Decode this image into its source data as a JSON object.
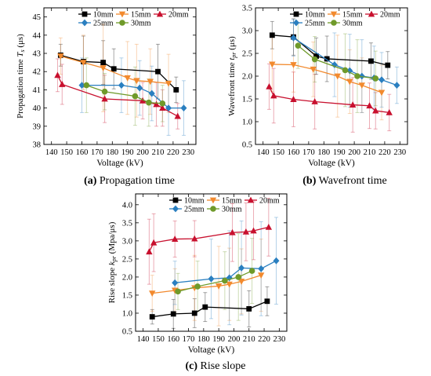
{
  "colors": {
    "10mm": "#000000",
    "15mm": "#f28a2e",
    "20mm": "#c8102e",
    "25mm": "#2a7fc0",
    "30mm": "#6f9a2a"
  },
  "captions": {
    "a": {
      "letter": "(a)",
      "text": " Propagation time"
    },
    "b": {
      "letter": "(b)",
      "text": " Wavefront time"
    },
    "c": {
      "letter": "(c)",
      "text": " Rise slope"
    }
  },
  "chart_data": [
    {
      "id": "a",
      "type": "line",
      "ylabel": "Propagation time T_s (μs)",
      "xlabel": "Voltage (kV)",
      "xlim": [
        135,
        235
      ],
      "ylim": [
        38,
        45.5
      ],
      "xticks": [
        140,
        150,
        160,
        170,
        180,
        190,
        200,
        210,
        220,
        230
      ],
      "yticks": [
        38,
        39,
        40,
        41,
        42,
        43,
        44,
        45
      ],
      "legend": {
        "placement": "top-right",
        "columns": 3
      },
      "series": [
        {
          "name": "10mm",
          "marker": "square",
          "x": [
            146,
            161,
            174,
            181,
            210,
            222
          ],
          "y": [
            42.9,
            42.55,
            42.5,
            42.15,
            42.0,
            41.0
          ],
          "err": [
            0.6,
            1.4,
            1.2,
            1.1,
            1.5,
            0.7
          ]
        },
        {
          "name": "15mm",
          "marker": "tri-down",
          "x": [
            146,
            161,
            174,
            190,
            196,
            205,
            217
          ],
          "y": [
            42.85,
            42.5,
            42.2,
            41.65,
            41.5,
            41.45,
            41.35
          ],
          "err": [
            1.0,
            1.5,
            2.4,
            2.0,
            2.0,
            1.8,
            1.6
          ]
        },
        {
          "name": "20mm",
          "marker": "tri-up",
          "x": [
            144,
            147,
            175,
            200,
            209,
            213,
            223
          ],
          "y": [
            41.8,
            41.3,
            40.5,
            40.4,
            40.2,
            40.0,
            39.55
          ],
          "err": [
            0.9,
            1.1,
            1.3,
            1.0,
            1.2,
            1.0,
            0.7
          ]
        },
        {
          "name": "25mm",
          "marker": "diamond",
          "x": [
            160,
            186,
            198,
            206,
            217,
            227
          ],
          "y": [
            41.25,
            41.25,
            41.1,
            40.8,
            40.0,
            40.0
          ],
          "err": [
            1.5,
            1.5,
            1.5,
            1.5,
            1.5,
            1.5
          ]
        },
        {
          "name": "30mm",
          "marker": "circle",
          "x": [
            163,
            175,
            195,
            204,
            213
          ],
          "y": [
            41.25,
            40.9,
            40.65,
            40.3,
            40.25
          ],
          "err": [
            1.5,
            1.0,
            1.6,
            1.3,
            1.0
          ]
        }
      ]
    },
    {
      "id": "b",
      "type": "line",
      "ylabel": "Wavefront time t_pr (μs)",
      "xlabel": "Voltage (kV)",
      "xlim": [
        135,
        235
      ],
      "ylim": [
        0.5,
        3.5
      ],
      "xticks": [
        140,
        150,
        160,
        170,
        180,
        190,
        200,
        210,
        220,
        230
      ],
      "yticks": [
        0.5,
        1.0,
        1.5,
        2.0,
        2.5,
        3.0,
        3.5
      ],
      "legend": {
        "placement": "top-right",
        "columns": 3
      },
      "series": [
        {
          "name": "10mm",
          "marker": "square",
          "x": [
            146,
            160,
            175,
            182,
            211,
            222
          ],
          "y": [
            2.9,
            2.86,
            2.44,
            2.38,
            2.33,
            2.24
          ],
          "err": [
            0.3,
            0.4,
            0.4,
            0.5,
            0.4,
            0.3
          ]
        },
        {
          "name": "15mm",
          "marker": "tri-down",
          "x": [
            146,
            160,
            173,
            189,
            197,
            205,
            218
          ],
          "y": [
            2.26,
            2.25,
            2.15,
            2.0,
            1.88,
            1.8,
            1.64
          ],
          "err": [
            0.6,
            0.6,
            0.6,
            0.9,
            0.7,
            0.6,
            0.6
          ]
        },
        {
          "name": "20mm",
          "marker": "tri-up",
          "x": [
            144,
            147,
            160,
            174,
            199,
            210,
            214,
            223
          ],
          "y": [
            1.77,
            1.57,
            1.49,
            1.44,
            1.37,
            1.35,
            1.24,
            1.2
          ],
          "err": [
            0.5,
            0.6,
            0.6,
            0.6,
            0.6,
            0.5,
            0.4,
            0.4
          ]
        },
        {
          "name": "25mm",
          "marker": "diamond",
          "x": [
            160,
            187,
            197,
            205,
            213,
            218,
            228
          ],
          "y": [
            2.84,
            2.25,
            2.12,
            2.0,
            1.96,
            1.92,
            1.8
          ],
          "err": [
            0.4,
            0.7,
            0.8,
            0.8,
            0.7,
            0.6,
            0.4
          ]
        },
        {
          "name": "30mm",
          "marker": "circle",
          "x": [
            163,
            174,
            194,
            202,
            214
          ],
          "y": [
            2.67,
            2.37,
            2.13,
            2.0,
            1.95
          ],
          "err": [
            0.5,
            0.5,
            0.8,
            0.8,
            0.6
          ]
        }
      ]
    },
    {
      "id": "c",
      "type": "line",
      "ylabel": "Rise slope k_pr (Mpa/μs)",
      "xlabel": "Voltage (kV)",
      "xlim": [
        135,
        235
      ],
      "ylim": [
        0.5,
        4.3
      ],
      "xticks": [
        140,
        150,
        160,
        170,
        180,
        190,
        200,
        210,
        220,
        230
      ],
      "yticks": [
        0.5,
        1.0,
        1.5,
        2.0,
        2.5,
        3.0,
        3.5,
        4.0
      ],
      "legend": {
        "placement": "top",
        "columns": 3
      },
      "series": [
        {
          "name": "10mm",
          "marker": "square",
          "x": [
            146,
            160,
            174,
            181,
            210,
            222
          ],
          "y": [
            0.9,
            0.98,
            1.0,
            1.17,
            1.12,
            1.33
          ],
          "err": [
            0.2,
            0.4,
            0.4,
            0.4,
            0.5,
            0.4
          ]
        },
        {
          "name": "15mm",
          "marker": "tri-down",
          "x": [
            146,
            161,
            174,
            190,
            197,
            205,
            218
          ],
          "y": [
            1.55,
            1.63,
            1.7,
            1.75,
            1.8,
            1.88,
            2.05
          ],
          "err": [
            0.5,
            0.6,
            0.9,
            1.1,
            1.0,
            0.9,
            1.0
          ]
        },
        {
          "name": "20mm",
          "marker": "tri-up",
          "x": [
            144,
            147,
            161,
            174,
            199,
            208,
            213,
            223
          ],
          "y": [
            2.7,
            2.95,
            3.05,
            3.06,
            3.23,
            3.25,
            3.28,
            3.38
          ],
          "err": [
            0.9,
            0.8,
            0.5,
            0.5,
            0.8,
            0.8,
            0.8,
            0.8
          ]
        },
        {
          "name": "25mm",
          "marker": "diamond",
          "x": [
            161,
            185,
            197,
            205,
            218,
            228
          ],
          "y": [
            1.84,
            1.95,
            1.98,
            2.25,
            2.23,
            2.45
          ],
          "err": [
            0.6,
            1.1,
            1.3,
            1.3,
            1.3,
            1.2
          ]
        },
        {
          "name": "30mm",
          "marker": "circle",
          "x": [
            163,
            176,
            194,
            203,
            212
          ],
          "y": [
            1.6,
            1.74,
            1.9,
            2.0,
            2.17
          ],
          "err": [
            0.5,
            0.7,
            0.8,
            1.2,
            0.9
          ]
        }
      ]
    }
  ]
}
